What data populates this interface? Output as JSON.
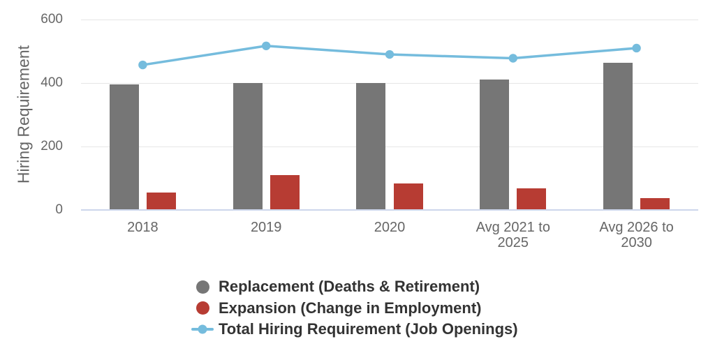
{
  "chart_data": {
    "type": "bar+line combo",
    "title": "",
    "ylabel": "Hiring Requirement",
    "xlabel": "",
    "categories": [
      "2018",
      "2019",
      "2020",
      "Avg 2021 to 2025",
      "Avg 2026 to 2030"
    ],
    "series": [
      {
        "name": "Replacement (Deaths & Retirement)",
        "type": "bar",
        "color": "#767676",
        "values": [
          395,
          400,
          400,
          410,
          463
        ]
      },
      {
        "name": "Expansion (Change in Employment)",
        "type": "bar",
        "color": "#b73c33",
        "values": [
          54,
          110,
          84,
          68,
          38
        ]
      },
      {
        "name": "Total Hiring Requirement (Job Openings)",
        "type": "line",
        "color": "#75bcdd",
        "values": [
          457,
          517,
          490,
          478,
          510
        ]
      }
    ],
    "ylim": [
      0,
      600
    ],
    "yticks": [
      0,
      200,
      400,
      600
    ],
    "grid": "horizontal",
    "legend_position": "bottom-center",
    "colors": {
      "axis_line": "#ccd6eb",
      "gridline": "#e6e6e6",
      "tick_label": "#666666",
      "axis_title": "#666666",
      "legend_text": "#333333",
      "background": "#ffffff"
    }
  }
}
